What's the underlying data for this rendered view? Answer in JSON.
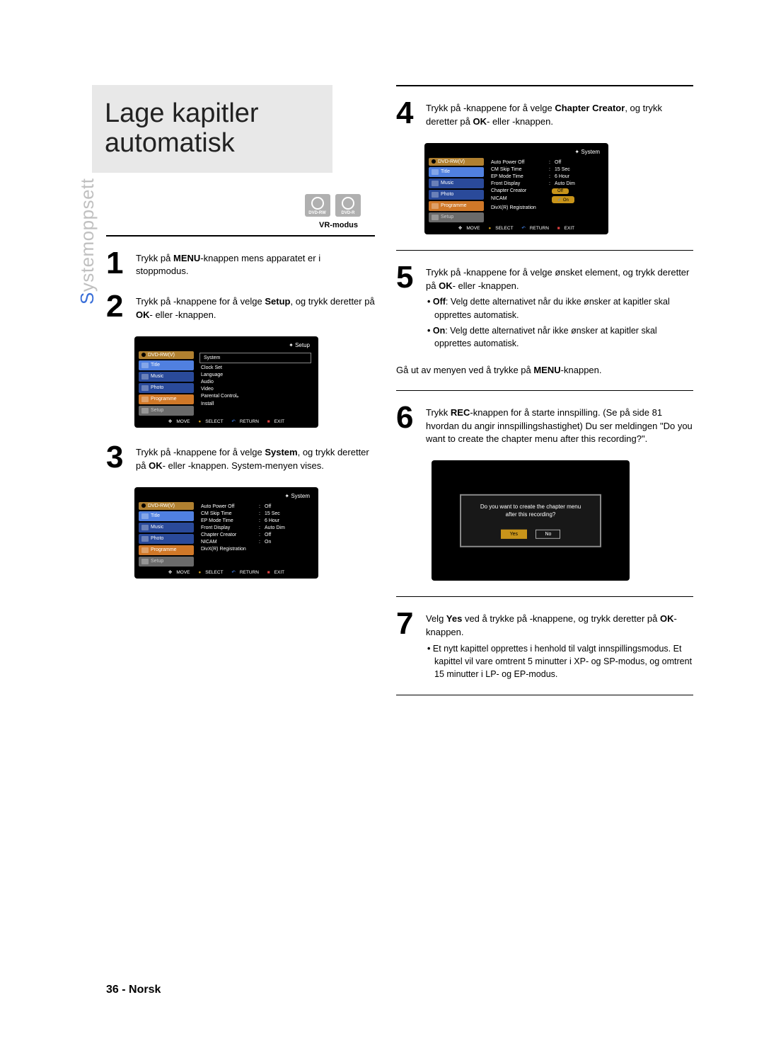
{
  "title_line1": "Lage kapitler",
  "title_line2": "automatisk",
  "disc_badges": [
    "DVD-RW",
    "DVD-R"
  ],
  "vr_modus": "VR-modus",
  "side_tab_accent": "S",
  "side_tab_rest": "ystemoppsett",
  "steps_left": {
    "s1": {
      "num": "1",
      "text_pre": "Trykk på ",
      "bold1": "MENU",
      "text_post": "-knappen mens apparatet er i stoppmodus."
    },
    "s2": {
      "num": "2",
      "parts": [
        "Trykk på        -knappene for å velge ",
        "Setup",
        ", og trykk deretter på ",
        "OK",
        "- eller     -knappen."
      ]
    },
    "s3": {
      "num": "3",
      "parts": [
        "Trykk på        -knappene for å velge ",
        "System",
        ", og trykk deretter på ",
        "OK",
        "- eller     -knappen. System-menyen vises."
      ]
    }
  },
  "steps_right": {
    "s4": {
      "num": "4",
      "parts": [
        "Trykk på        -knappene for å velge ",
        "Chapter Creator",
        ", og trykk deretter på ",
        "OK",
        "- eller     -knappen."
      ]
    },
    "s5": {
      "num": "5",
      "parts": [
        "Trykk på        -knappene for å velge ønsket element, og trykk deretter på ",
        "OK",
        "- eller     -knappen."
      ],
      "bullets": [
        {
          "lead": "Off",
          "text": ": Velg dette alternativet når du ikke ønsker at kapitler skal opprettes automatisk."
        },
        {
          "lead": "On",
          "text": ": Velg dette alternativet når ikke ønsker at kapitler skal opprettes automatisk."
        }
      ],
      "exit_pre": "Gå ut av menyen ved å trykke på ",
      "exit_bold": "MENU",
      "exit_post": "-knappen."
    },
    "s6": {
      "num": "6",
      "parts": [
        "Trykk ",
        "REC",
        "-knappen for å starte innspilling. (Se på side 81 hvordan du angir innspillingshastighet) Du ser meldingen \"Do you want to create the chapter menu after this recording?\"."
      ]
    },
    "s7": {
      "num": "7",
      "parts": [
        "Velg ",
        "Yes",
        " ved å trykke på           -knappene, og trykk deretter på ",
        "OK",
        "-knappen."
      ],
      "bullet": "Et nytt kapittel opprettes i henhold til valgt innspillingsmodus. Et kapittel vil vare omtrent 5 minutter i XP- og SP-modus, og omtrent 15 minutter i LP- og EP-modus."
    }
  },
  "screens": {
    "setup": {
      "header": "Setup",
      "nav_top": "DVD-RW(V)",
      "nav": [
        "Title",
        "Music",
        "Photo",
        "Programme",
        "Setup"
      ],
      "items": [
        "System",
        "Clock Set",
        "Language",
        "Audio",
        "Video",
        "Parental Control",
        "Install"
      ]
    },
    "system1": {
      "header": "System",
      "nav_top": "DVD-RW(V)",
      "nav": [
        "Title",
        "Music",
        "Photo",
        "Programme",
        "Setup"
      ],
      "rows": [
        {
          "k": "Auto Power Off",
          "v": "Off"
        },
        {
          "k": "CM Skip Time",
          "v": "15 Sec"
        },
        {
          "k": "EP Mode Time",
          "v": "6 Hour"
        },
        {
          "k": "Front Display",
          "v": "Auto Dim"
        },
        {
          "k": "Chapter Creator",
          "v": "Off"
        },
        {
          "k": "NICAM",
          "v": "On"
        },
        {
          "k": "DivX(R) Registration",
          "v": ""
        }
      ]
    },
    "system2": {
      "header": "System",
      "nav_top": "DVD-RW(V)",
      "nav": [
        "Title",
        "Music",
        "Photo",
        "Programme",
        "Setup"
      ],
      "rows": [
        {
          "k": "Auto Power Off",
          "v": "Off"
        },
        {
          "k": "CM Skip Time",
          "v": "15 Sec"
        },
        {
          "k": "EP Mode Time",
          "v": "6 Hour"
        },
        {
          "k": "Front Display",
          "v": "Auto Dim"
        },
        {
          "k": "Chapter Creator",
          "v": "",
          "opt": "Off"
        },
        {
          "k": "NICAM",
          "v": "",
          "opt": "On",
          "check": true
        },
        {
          "k": "DivX(R) Registration",
          "v": ""
        }
      ]
    },
    "footer": {
      "move": "MOVE",
      "select": "SELECT",
      "return": "RETURN",
      "exit": "EXIT"
    }
  },
  "dialog": {
    "line1": "Do you want to create the chapter menu",
    "line2": "after this recording?",
    "yes": "Yes",
    "no": "No"
  },
  "page_number": "36 -",
  "page_lang": "Norsk"
}
